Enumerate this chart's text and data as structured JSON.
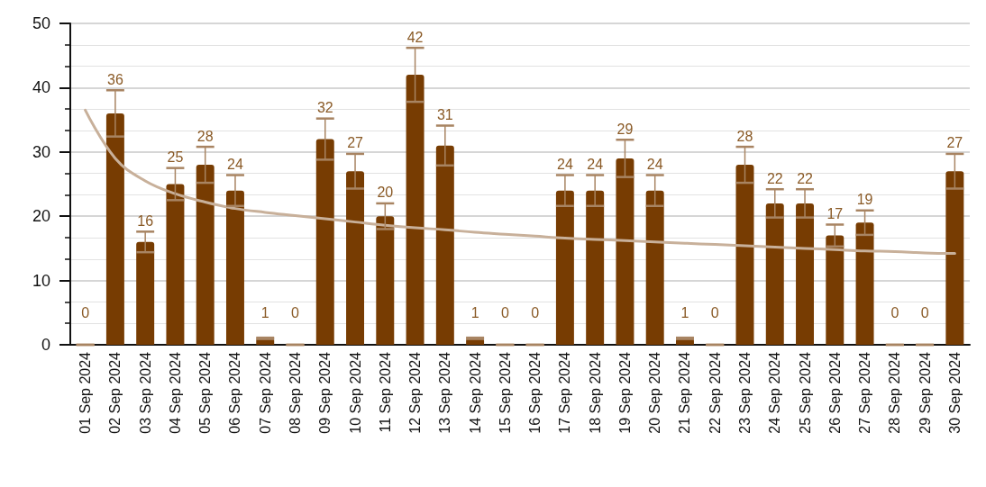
{
  "chart_data": {
    "type": "bar",
    "categories": [
      "01 Sep 2024",
      "02 Sep 2024",
      "03 Sep 2024",
      "04 Sep 2024",
      "05 Sep 2024",
      "06 Sep 2024",
      "07 Sep 2024",
      "08 Sep 2024",
      "09 Sep 2024",
      "10 Sep 2024",
      "11 Sep 2024",
      "12 Sep 2024",
      "13 Sep 2024",
      "14 Sep 2024",
      "15 Sep 2024",
      "16 Sep 2024",
      "17 Sep 2024",
      "18 Sep 2024",
      "19 Sep 2024",
      "20 Sep 2024",
      "21 Sep 2024",
      "22 Sep 2024",
      "23 Sep 2024",
      "24 Sep 2024",
      "25 Sep 2024",
      "26 Sep 2024",
      "27 Sep 2024",
      "28 Sep 2024",
      "29 Sep 2024",
      "30 Sep 2024"
    ],
    "series": [
      {
        "color": "#773c02",
        "value_labels": [
          "0",
          "36",
          "16",
          "25",
          "28",
          "24",
          "1",
          "0",
          "32",
          "27",
          "20",
          "42",
          "31",
          "1",
          "0",
          "0",
          "24",
          "24",
          "29",
          "24",
          "1",
          "0",
          "28",
          "22",
          "22",
          "17",
          "19",
          "0",
          "0",
          "27"
        ],
        "values": [
          0,
          36,
          16,
          25,
          28,
          24,
          1,
          0,
          32,
          27,
          20,
          42,
          31,
          1,
          0,
          0,
          24,
          24,
          29,
          24,
          1,
          0,
          28,
          22,
          22,
          17,
          19,
          0,
          0,
          27
        ],
        "errors": [
          0,
          3.6,
          1.6,
          2.5,
          2.8,
          2.4,
          0.1,
          0,
          3.2,
          2.7,
          2.0,
          4.2,
          3.1,
          0.1,
          0,
          0,
          2.4,
          2.4,
          2.9,
          2.4,
          0.1,
          0,
          2.8,
          2.2,
          2.2,
          1.7,
          1.9,
          0,
          0,
          2.7
        ]
      },
      {
        "type": "line",
        "color": "#c8b09a",
        "x": [
          "01 Sep 2024",
          "02 Sep 2024",
          "03 Sep 2024",
          "04 Sep 2024",
          "05 Sep 2024",
          "06 Sep 2024",
          "07 Sep 2024",
          "08 Sep 2024",
          "09 Sep 2024",
          "10 Sep 2024",
          "11 Sep 2024",
          "12 Sep 2024",
          "13 Sep 2024",
          "14 Sep 2024",
          "15 Sep 2024",
          "16 Sep 2024",
          "17 Sep 2024",
          "18 Sep 2024",
          "19 Sep 2024",
          "20 Sep 2024",
          "21 Sep 2024",
          "22 Sep 2024",
          "23 Sep 2024",
          "24 Sep 2024",
          "25 Sep 2024",
          "26 Sep 2024",
          "27 Sep 2024",
          "28 Sep 2024",
          "29 Sep 2024",
          "30 Sep 2024"
        ],
        "values": [
          36.5,
          29,
          25.5,
          23.5,
          22.2,
          21.2,
          20.6,
          20.1,
          19.6,
          19.1,
          18.6,
          18.2,
          17.9,
          17.5,
          17.2,
          16.9,
          16.6,
          16.4,
          16.2,
          16.0,
          15.8,
          15.6,
          15.4,
          15.2,
          15.0,
          14.8,
          14.6,
          14.5,
          14.3,
          14.2
        ],
        "marker": "none"
      }
    ],
    "ylim": [
      0,
      50
    ],
    "yticks": [
      0,
      10,
      20,
      30,
      40,
      50
    ],
    "grid": true
  }
}
